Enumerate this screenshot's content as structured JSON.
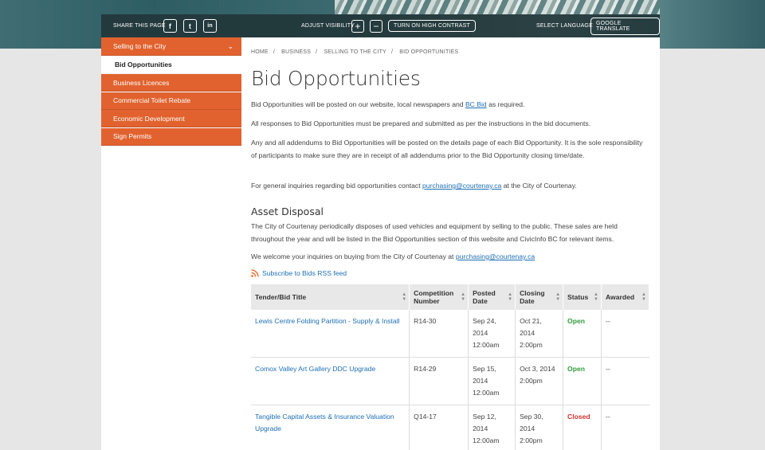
{
  "toolbar": {
    "share_label": "SHARE THIS PAGE",
    "social": [
      "f",
      "t",
      "in"
    ],
    "visibility_label": "ADJUST VISIBILITY",
    "zoom_in": "+",
    "zoom_out": "−",
    "contrast_label": "TURN ON HIGH CONTRAST",
    "language_label": "SELECT LANGUAGE",
    "translate_label": "GOOGLE TRANSLATE"
  },
  "sidebar": {
    "items": [
      {
        "label": "Selling to the City"
      },
      {
        "label": "Bid Opportunities"
      },
      {
        "label": "Business Licences"
      },
      {
        "label": "Commercial Toilet Rebate"
      },
      {
        "label": "Economic Development"
      },
      {
        "label": "Sign Permits"
      }
    ]
  },
  "breadcrumb": [
    "HOME",
    "BUSINESS",
    "SELLING TO THE CITY",
    "BID OPPORTUNITIES"
  ],
  "page_title": "Bid Opportunities",
  "intro": {
    "p1_before": "Bid Opportunities will be posted on our website, local newspapers and ",
    "p1_link": "BC Bid",
    "p1_after": " as required.",
    "p2": "All responses to Bid Opportunities must be prepared and submitted as per the instructions in the bid documents.",
    "p3": "Any and all addendums to Bid Opportunities will be posted on the details page of each Bid Opportunity. It is the sole responsibility of participants to make sure they are in receipt of all addendums prior to the Bid Opportunity closing time/date.",
    "p4_before": "For general inquiries regarding bid opportunities contact ",
    "p4_link": "purchasing@courtenay.ca",
    "p4_after": " at the City of Courtenay."
  },
  "asset": {
    "heading": "Asset Disposal",
    "p1": "The City of Courtenay periodically disposes of used vehicles and equipment by selling to the public. These sales are held throughout the year and will be listed in the Bid Opportunities section of this website and CivicInfo BC for relevant items.",
    "p2_before": "We welcome your inquiries on buying from the City of Courtenay at ",
    "p2_link": "purchasing@courtenay.ca"
  },
  "rss_label": "Subscribe to Bids RSS feed",
  "table": {
    "headers": [
      "Tender/Bid Title",
      "Competition Number",
      "Posted Date",
      "Closing Date",
      "Status",
      "Awarded"
    ],
    "rows": [
      {
        "title": "Lewis Centre Folding Partition - Supply & Install",
        "number": "R14-30",
        "posted": "Sep 24, 2014 12:00am",
        "closing": "Oct 21, 2014 2:00pm",
        "status": "Open",
        "awarded": "--"
      },
      {
        "title": "Comox Valley Art Gallery DDC Upgrade",
        "number": "R14-29",
        "posted": "Sep 15, 2014 12:00am",
        "closing": "Oct 3, 2014 2:00pm",
        "status": "Open",
        "awarded": "--"
      },
      {
        "title": "Tangible Capital Assets & Insurance Valuation Upgrade",
        "number": "Q14-17",
        "posted": "Sep 12, 2014 12:00am",
        "closing": "Sep 30, 2014 2:00pm",
        "status": "Closed",
        "awarded": "--"
      }
    ]
  },
  "colors": {
    "accent": "#e1622e",
    "link": "#1e6fb5",
    "open": "#2e9e3a",
    "closed": "#d0342c"
  }
}
